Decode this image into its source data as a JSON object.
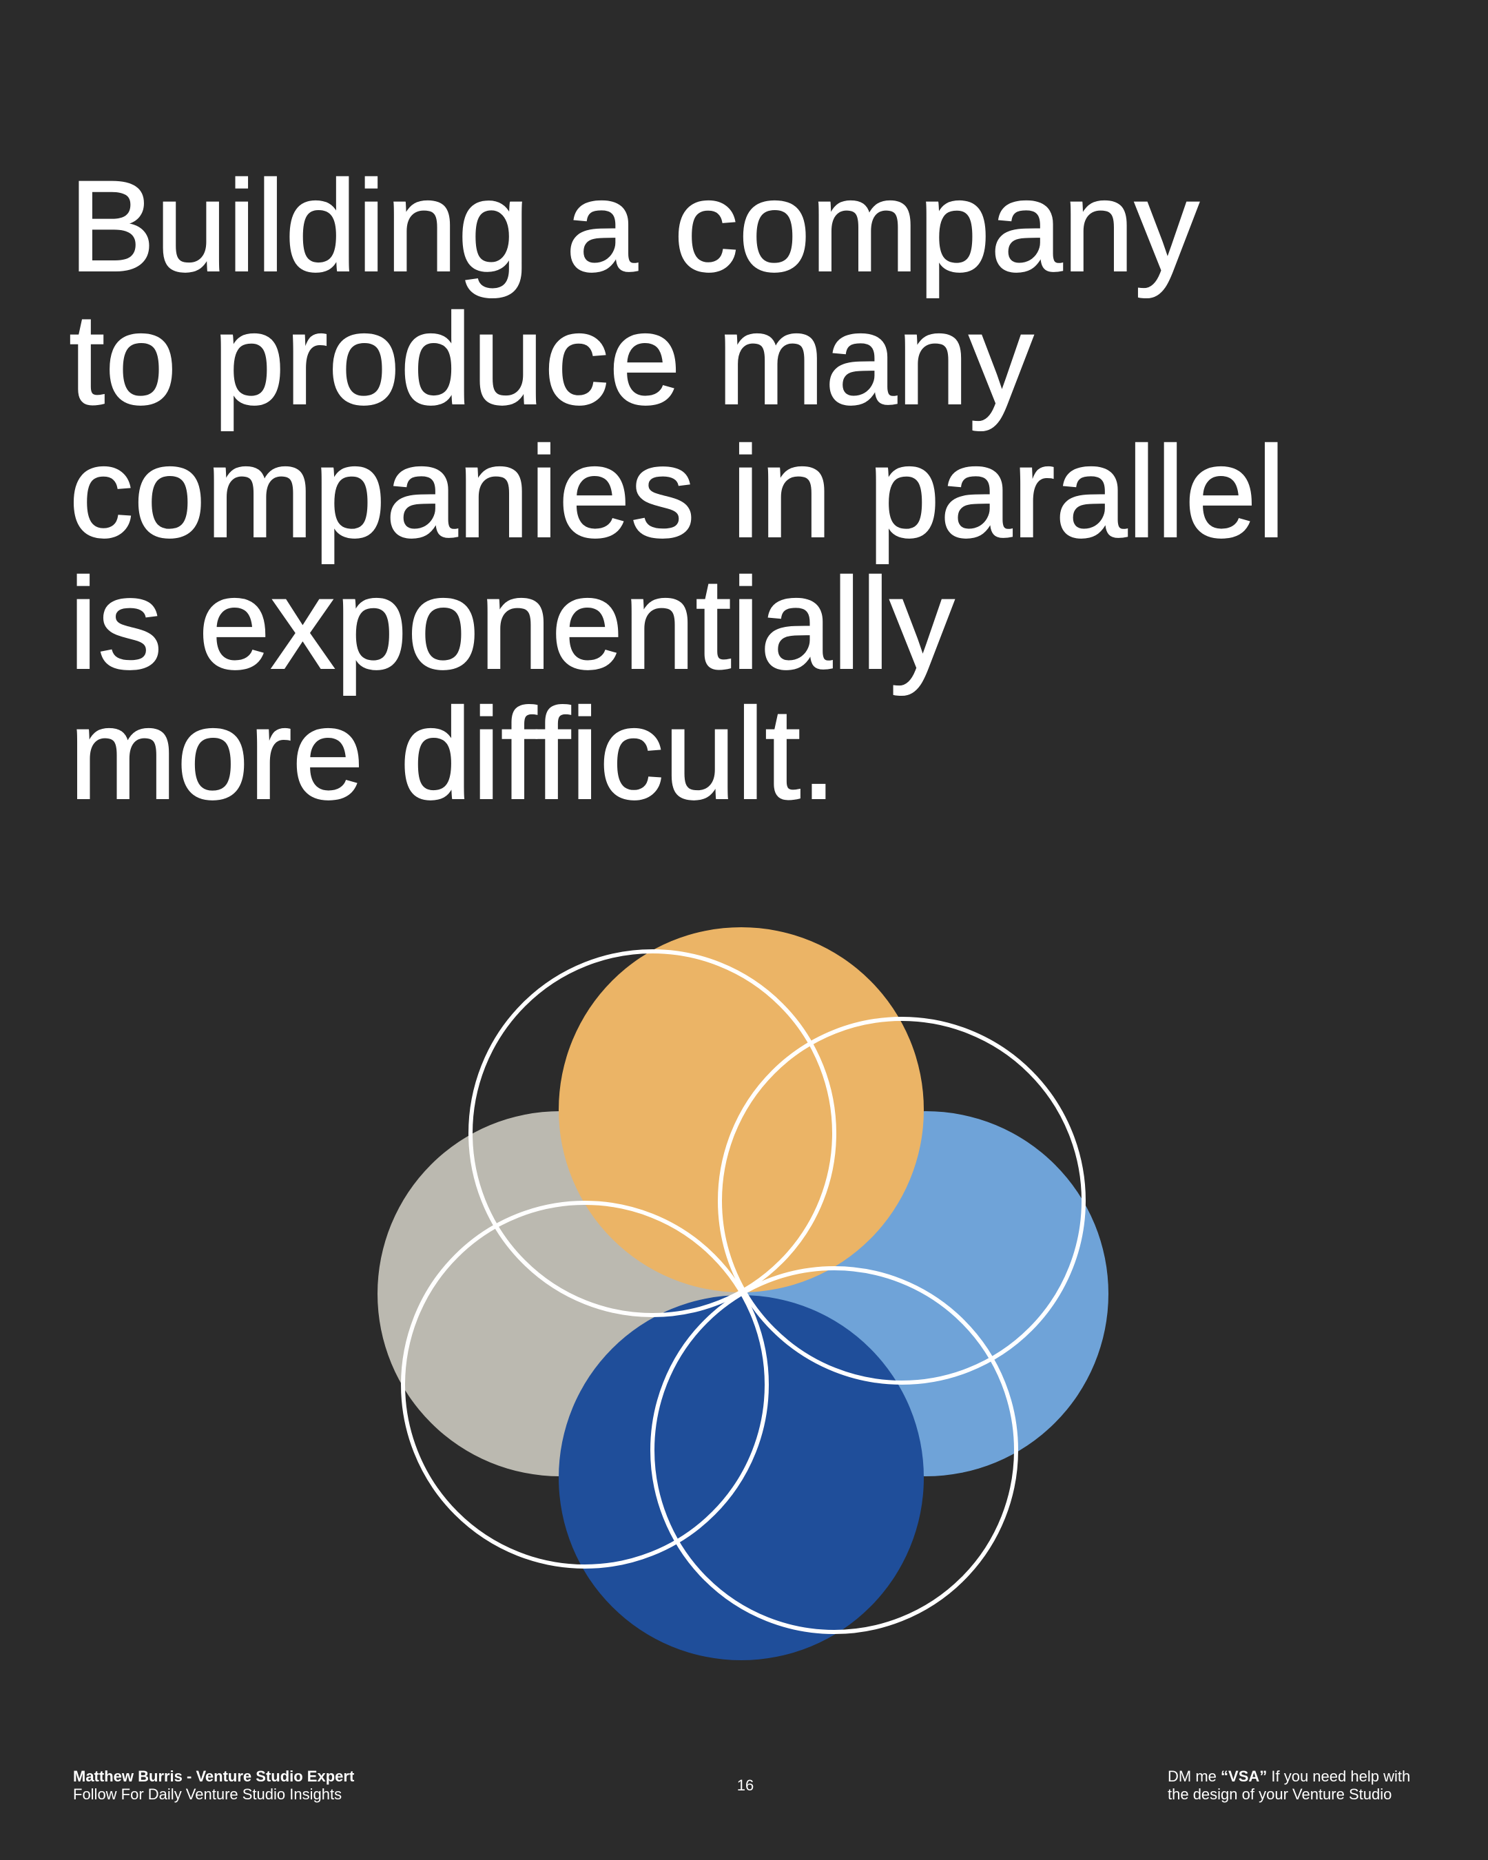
{
  "headline": [
    "Building a company",
    "to produce many",
    "companies in parallel",
    "is exponentially",
    "more difficult."
  ],
  "footer": {
    "author": "Matthew Burris - Venture Studio Expert",
    "tagline": "Follow For Daily Venture Studio Insights",
    "page": "16",
    "cta": {
      "prefix": "DM me",
      "highlight": "“VSA”",
      "line1": "If you need help with",
      "line2": "the design of your Venture Studio"
    }
  }
}
